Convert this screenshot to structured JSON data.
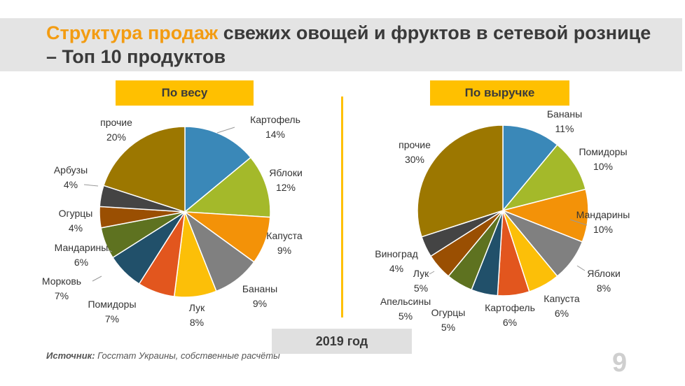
{
  "slide": {
    "title_accent": "Структура продаж",
    "title_rest": " свежих овощей и фруктов в сетевой рознице – Топ 10 продуктов",
    "year_label": "2019 год",
    "source_bold": "Источник:",
    "source_rest": " Госстат Украины, собственные расчёты",
    "page_number": "9"
  },
  "colors": {
    "title_accent": "#f39c12",
    "pill": "#ffc000",
    "text": "#3a3a3a"
  },
  "chart_data": [
    {
      "type": "pie",
      "title": "По весу",
      "unit": "%",
      "slices": [
        {
          "label": "Картофель",
          "value": 14,
          "color": "#3a88b8"
        },
        {
          "label": "Яблоки",
          "value": 12,
          "color": "#a4b92a"
        },
        {
          "label": "Капуста",
          "value": 9,
          "color": "#f39208"
        },
        {
          "label": "Бананы",
          "value": 9,
          "color": "#808080"
        },
        {
          "label": "Лук",
          "value": 8,
          "color": "#fcbf08"
        },
        {
          "label": "Помидоры",
          "value": 7,
          "color": "#e2561e"
        },
        {
          "label": "Морковь",
          "value": 7,
          "color": "#21506a"
        },
        {
          "label": "Мандарины",
          "value": 6,
          "color": "#5e7220"
        },
        {
          "label": "Огурцы",
          "value": 4,
          "color": "#9a4f02"
        },
        {
          "label": "Арбузы",
          "value": 4,
          "color": "#444444"
        },
        {
          "label": "прочие",
          "value": 20,
          "color": "#9c7700"
        }
      ]
    },
    {
      "type": "pie",
      "title": "По выручке",
      "unit": "%",
      "slices": [
        {
          "label": "Бананы",
          "value": 11,
          "color": "#3a88b8"
        },
        {
          "label": "Помидоры",
          "value": 10,
          "color": "#a4b92a"
        },
        {
          "label": "Мандарины",
          "value": 10,
          "color": "#f39208"
        },
        {
          "label": "Яблоки",
          "value": 8,
          "color": "#808080"
        },
        {
          "label": "Капуста",
          "value": 6,
          "color": "#fcbf08"
        },
        {
          "label": "Картофель",
          "value": 6,
          "color": "#e2561e"
        },
        {
          "label": "Огурцы",
          "value": 5,
          "color": "#21506a"
        },
        {
          "label": "Апельсины",
          "value": 5,
          "color": "#5e7220"
        },
        {
          "label": "Лук",
          "value": 5,
          "color": "#9a4f02"
        },
        {
          "label": "Виноград",
          "value": 4,
          "color": "#444444"
        },
        {
          "label": "прочие",
          "value": 30,
          "color": "#9c7700"
        }
      ]
    }
  ]
}
